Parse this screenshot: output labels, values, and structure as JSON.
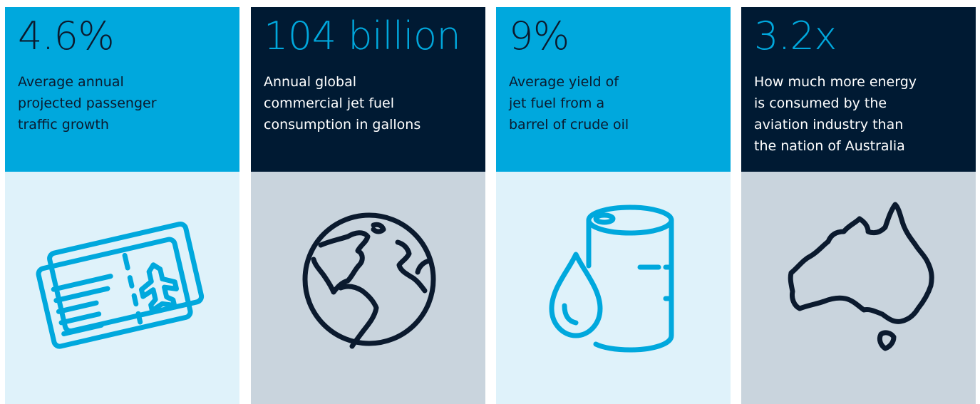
{
  "stats": [
    {
      "value": "4.6%",
      "description": "Average annual\nprojected passenger\ntraffic growth",
      "icon": "ticket-icon"
    },
    {
      "value": "104 billion",
      "description": "Annual global\ncommercial jet fuel\nconsumption in gallons",
      "icon": "globe-icon"
    },
    {
      "value": "9%",
      "description": "Average yield of\njet fuel from a\nbarrel of crude oil",
      "icon": "oil-barrel-icon"
    },
    {
      "value": "3.2x",
      "description": "How much more energy\nis consumed by the\naviation industry than\nthe nation of Australia",
      "icon": "australia-map-icon"
    }
  ],
  "colors": {
    "cyan": "#00a8dd",
    "navy": "#001a33",
    "light_blue": "#dff2fa",
    "grey": "#c9d4dd",
    "text_dark": "#0b1a2e",
    "white": "#ffffff"
  }
}
